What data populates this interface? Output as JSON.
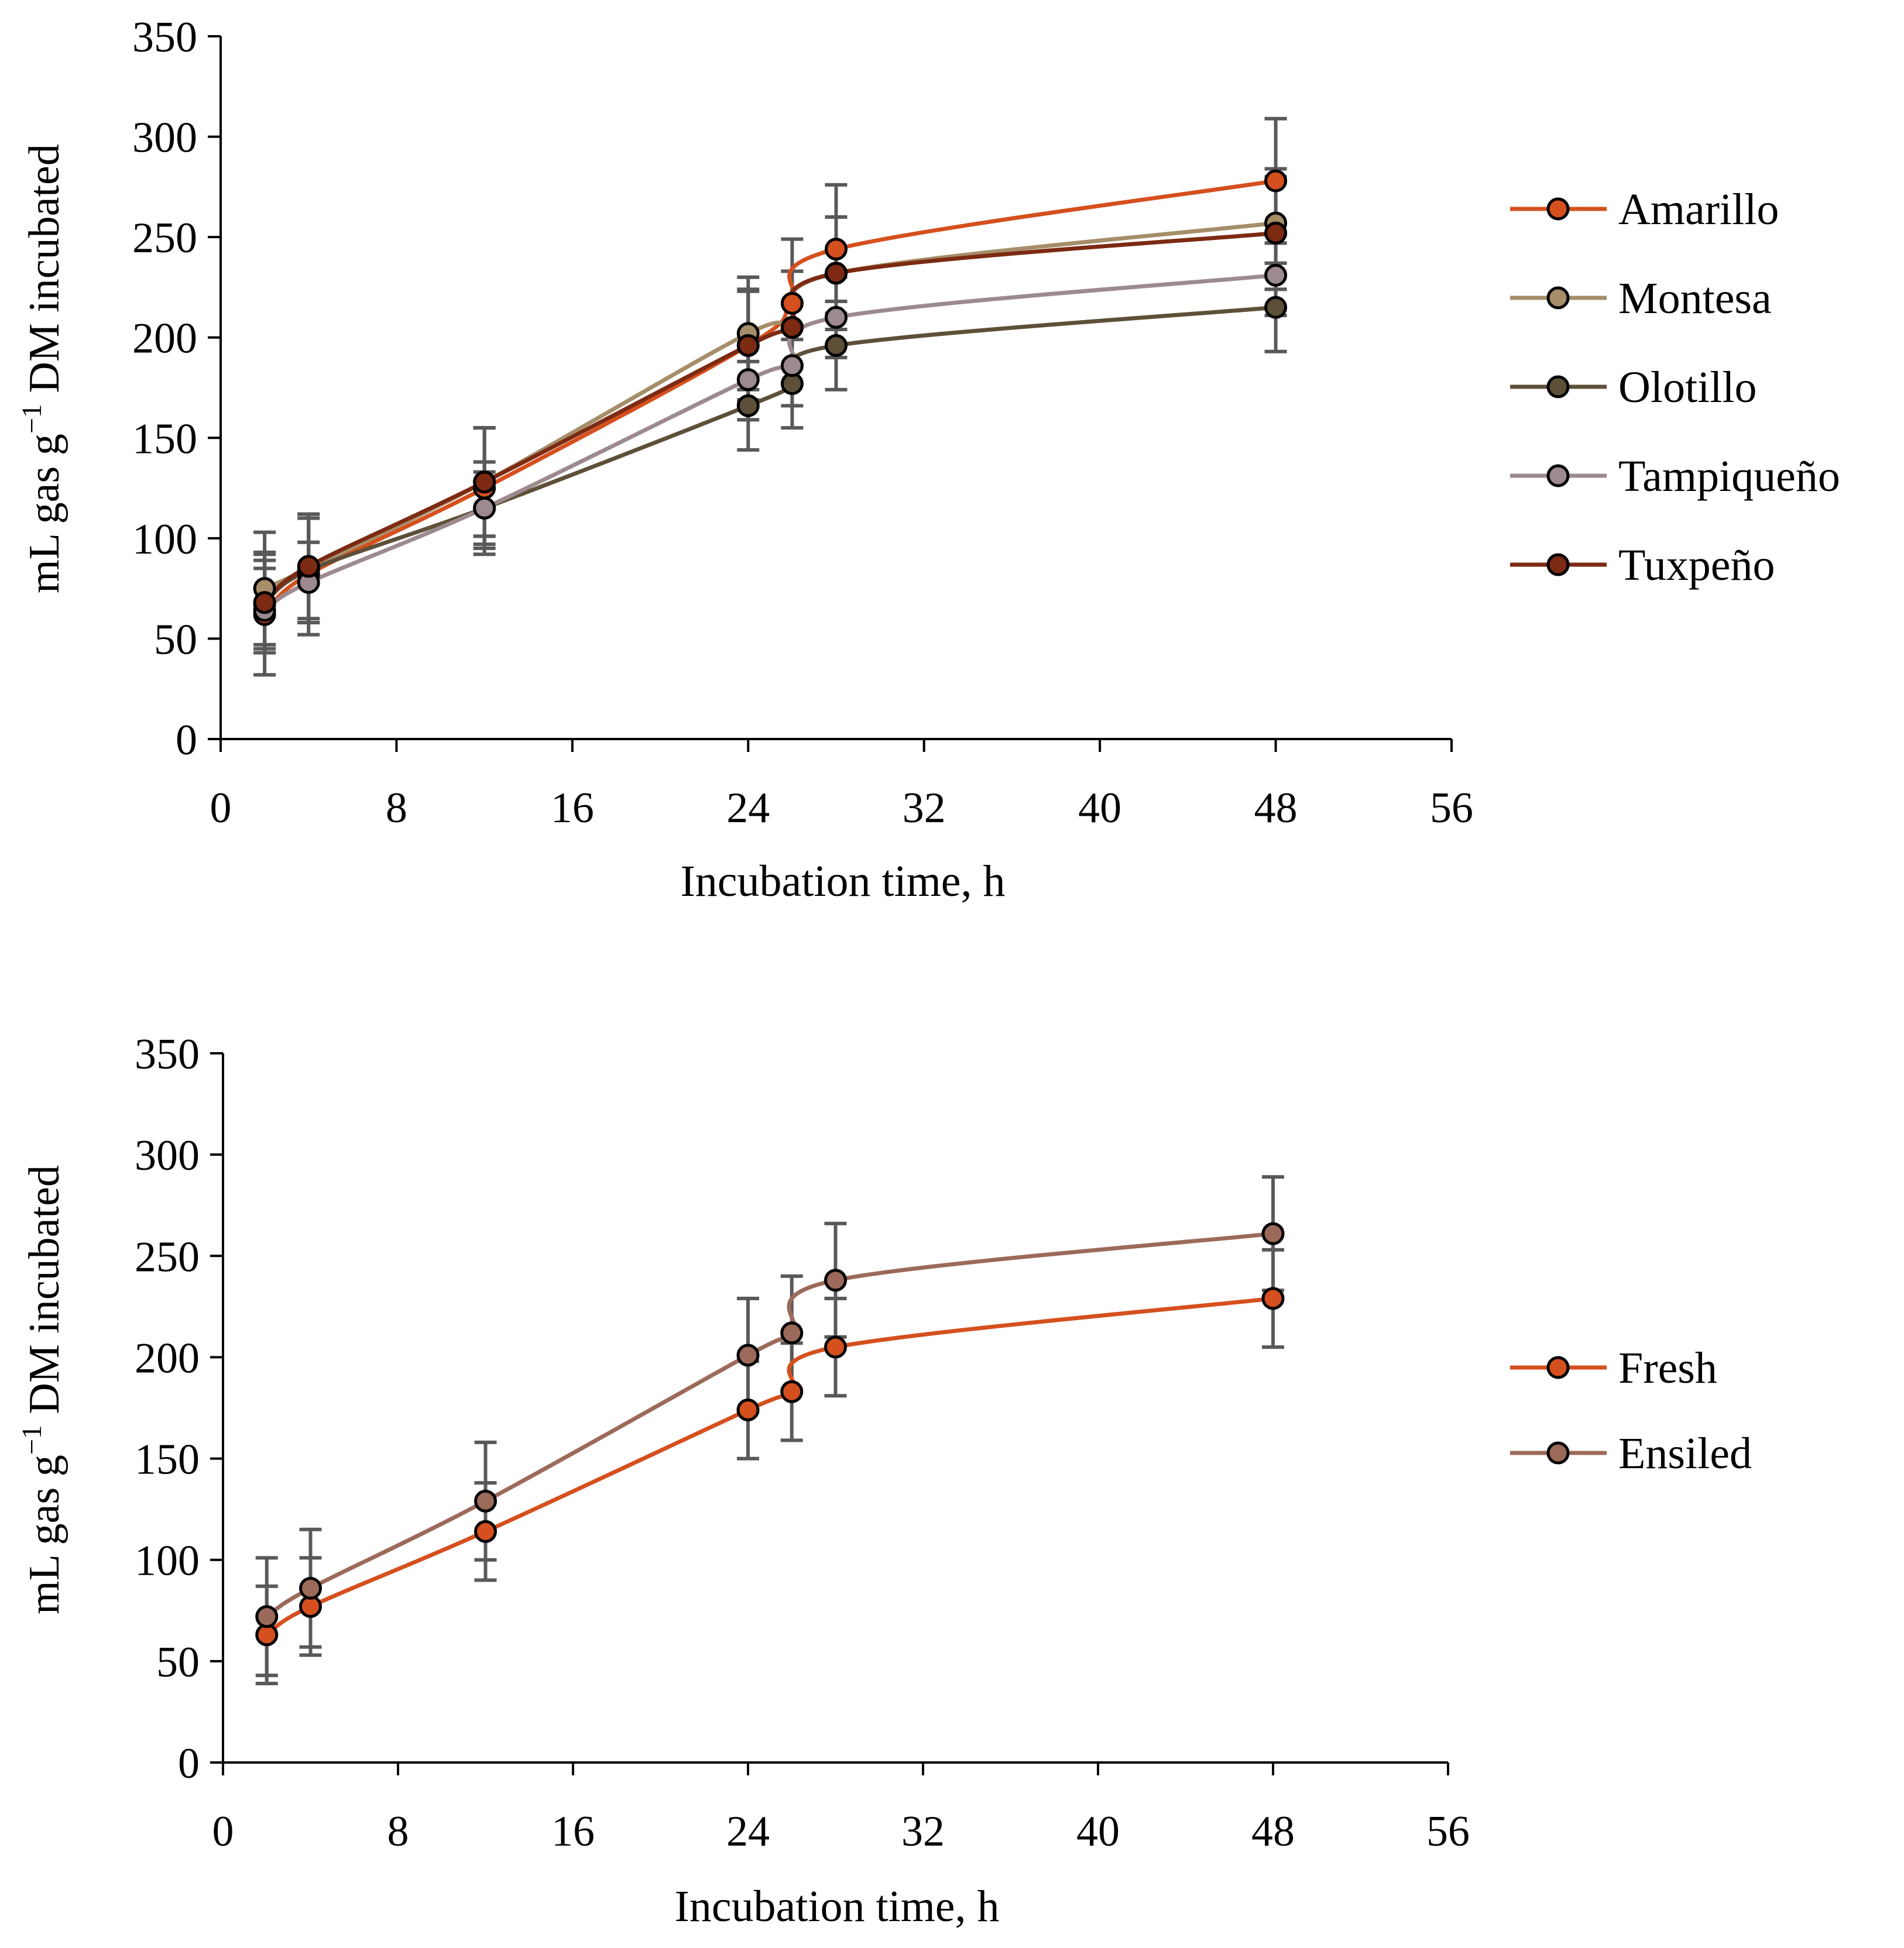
{
  "colors": {
    "amarillo": "#d5501e",
    "montesa": "#a58e68",
    "olotillo": "#5e5038",
    "tampiqueno": "#9c8a8e",
    "tuxpeno": "#7c2a12",
    "fresh": "#d5501e",
    "ensiled": "#9c6a5a",
    "error_bar": "#595959",
    "axis": "#000000"
  },
  "chart_data": [
    {
      "type": "line",
      "title": "",
      "xlabel": "Incubation time, h",
      "ylabel_main": "mL gas g",
      "ylabel_sup": "−1",
      "ylabel_rest": " DM incubated",
      "xlim": [
        0,
        56
      ],
      "ylim": [
        0,
        350
      ],
      "xticks": [
        0,
        8,
        16,
        24,
        32,
        40,
        48,
        56
      ],
      "yticks": [
        0,
        50,
        100,
        150,
        200,
        250,
        300,
        350
      ],
      "x": [
        2,
        4,
        12,
        24,
        26,
        28,
        48
      ],
      "legend_position": "right",
      "series": [
        {
          "name": "Amarillo",
          "color_key": "amarillo",
          "values": [
            62,
            82,
            125,
            196,
            217,
            244,
            278
          ],
          "errors": [
            30,
            30,
            30,
            28,
            32,
            32,
            31
          ]
        },
        {
          "name": "Montesa",
          "color_key": "montesa",
          "values": [
            75,
            85,
            128,
            202,
            205,
            232,
            257
          ],
          "errors": [
            28,
            27,
            27,
            28,
            28,
            28,
            27
          ]
        },
        {
          "name": "Olotillo",
          "color_key": "olotillo",
          "values": [
            67,
            84,
            115,
            166,
            177,
            196,
            215
          ],
          "errors": [
            22,
            26,
            23,
            22,
            22,
            22,
            22
          ]
        },
        {
          "name": "Tampiqueño",
          "color_key": "tampiqueno",
          "values": [
            64,
            78,
            115,
            179,
            186,
            210,
            231
          ],
          "errors": [
            21,
            20,
            18,
            20,
            20,
            20,
            20
          ]
        },
        {
          "name": "Tuxpeño",
          "color_key": "tuxpeno",
          "values": [
            68,
            86,
            128,
            196,
            205,
            232,
            252
          ],
          "errors": [
            25,
            26,
            27,
            27,
            28,
            28,
            28
          ]
        }
      ]
    },
    {
      "type": "line",
      "title": "",
      "xlabel": "Incubation time, h",
      "ylabel_main": "mL gas g",
      "ylabel_sup": "−1",
      "ylabel_rest": " DM incubated",
      "xlim": [
        0,
        56
      ],
      "ylim": [
        0,
        350
      ],
      "xticks": [
        0,
        8,
        16,
        24,
        32,
        40,
        48,
        56
      ],
      "yticks": [
        0,
        50,
        100,
        150,
        200,
        250,
        300,
        350
      ],
      "x": [
        2,
        4,
        12,
        24,
        26,
        28,
        48
      ],
      "legend_position": "right",
      "series": [
        {
          "name": "Fresh",
          "color_key": "fresh",
          "values": [
            63,
            77,
            114,
            174,
            183,
            205,
            229
          ],
          "errors": [
            24,
            24,
            24,
            24,
            24,
            24,
            24
          ]
        },
        {
          "name": "Ensiled",
          "color_key": "ensiled",
          "values": [
            72,
            86,
            129,
            201,
            212,
            238,
            261
          ],
          "errors": [
            29,
            29,
            29,
            28,
            28,
            28,
            28
          ]
        }
      ]
    }
  ]
}
